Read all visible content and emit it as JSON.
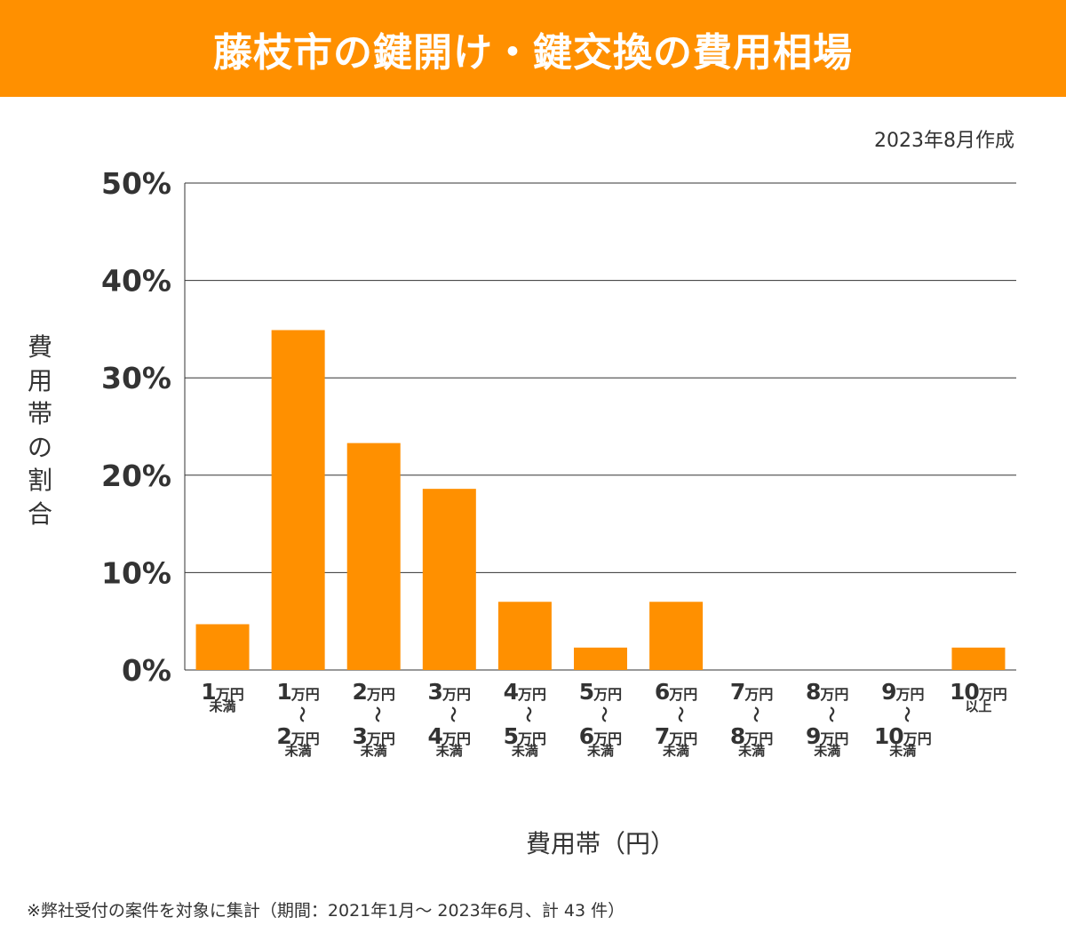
{
  "title": "藤枝市の鍵開け・鍵交換の費用相場",
  "date_note": "2023年8月作成",
  "footnote": "※弊社受付の案件を対象に集計（期間：2021年1月～ 2023年6月、計 43 件）",
  "colors": {
    "accent": "#ff9000",
    "bar": "#ff9000",
    "grid": "#333333"
  },
  "chart_data": {
    "type": "bar",
    "title": "藤枝市の鍵開け・鍵交換の費用相場",
    "xlabel": "費用帯（円）",
    "ylabel": "費用帯の割合",
    "ylim": [
      0,
      50
    ],
    "yticks": [
      "0%",
      "10%",
      "20%",
      "30%",
      "40%",
      "50%"
    ],
    "grid": true,
    "unit_label": "万円",
    "tilde": "〜",
    "categories": [
      {
        "from": "1",
        "suffix": "未満"
      },
      {
        "from": "1",
        "to": "2",
        "suffix": "未満"
      },
      {
        "from": "2",
        "to": "3",
        "suffix": "未満"
      },
      {
        "from": "3",
        "to": "4",
        "suffix": "未満"
      },
      {
        "from": "4",
        "to": "5",
        "suffix": "未満"
      },
      {
        "from": "5",
        "to": "6",
        "suffix": "未満"
      },
      {
        "from": "6",
        "to": "7",
        "suffix": "未満"
      },
      {
        "from": "7",
        "to": "8",
        "suffix": "未満"
      },
      {
        "from": "8",
        "to": "9",
        "suffix": "未満"
      },
      {
        "from": "9",
        "to": "10",
        "suffix": "未満"
      },
      {
        "from": "10",
        "suffix": "以上"
      }
    ],
    "values": [
      4.7,
      34.9,
      23.3,
      18.6,
      7.0,
      2.3,
      7.0,
      0,
      0,
      0,
      2.3
    ]
  }
}
